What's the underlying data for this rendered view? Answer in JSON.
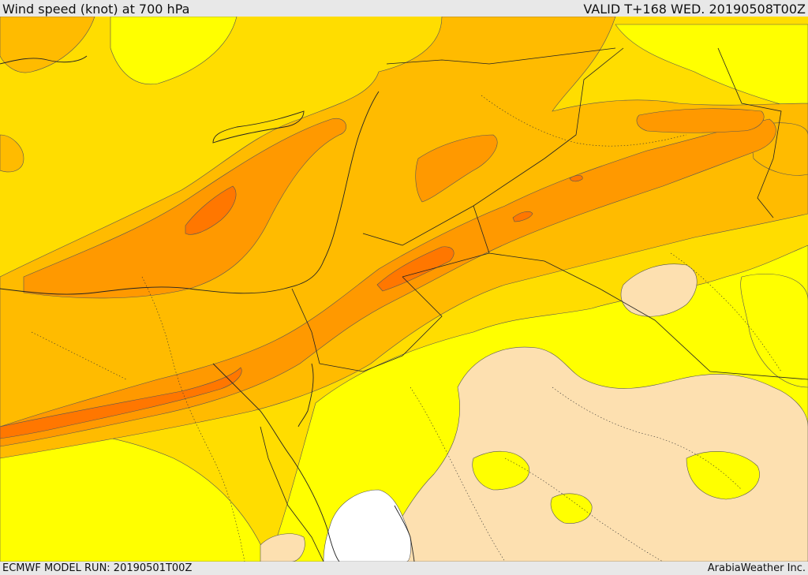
{
  "header": {
    "title": "Wind speed (knot) at 700 hPa",
    "valid": "VALID T+168 WED. 20190508T00Z"
  },
  "footer": {
    "model_run": "ECMWF MODEL RUN: 20190501T00Z",
    "credit": "ArabiaWeather Inc."
  },
  "legend_colors": {
    "calm": "#ffffff",
    "light": "#fde0b0",
    "low": "#ffff00",
    "moderate": "#ffdd00",
    "fresh": "#ffbb00",
    "strong": "#ff9900",
    "very_strong": "#ff7700"
  }
}
